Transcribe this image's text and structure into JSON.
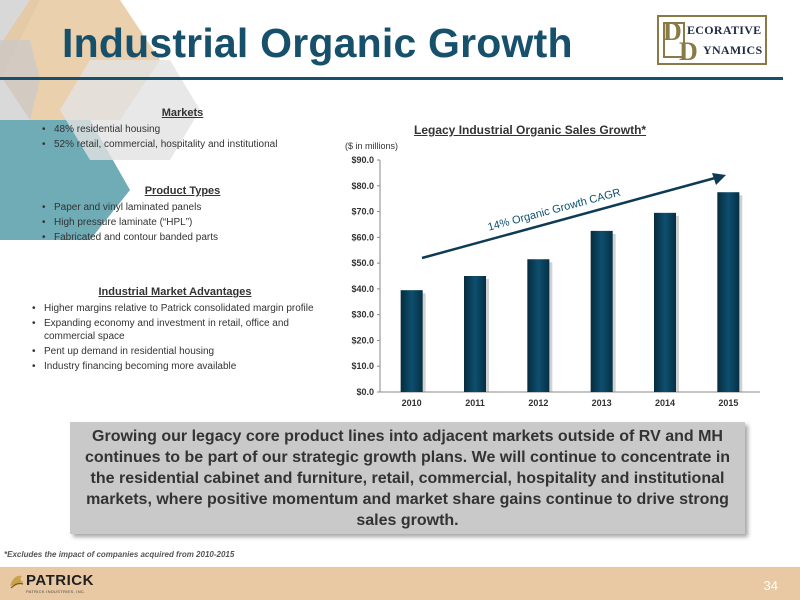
{
  "header": {
    "title": "Industrial Organic Growth",
    "logo": {
      "initial1": "D",
      "initial2": "D",
      "word1": "ECORATIVE",
      "word2": "YNAMICS"
    }
  },
  "left": {
    "markets": {
      "heading": "Markets",
      "items": [
        "48% residential housing",
        "52% retail, commercial, hospitality and institutional"
      ]
    },
    "product_types": {
      "heading": "Product Types",
      "items": [
        "Paper and vinyl laminated panels",
        "High pressure laminate (“HPL”)",
        "Fabricated and contour banded parts"
      ]
    },
    "advantages": {
      "heading": "Industrial Market Advantages",
      "items": [
        "Higher margins relative to Patrick consolidated margin profile",
        "Expanding economy and investment in retail, office and commercial space",
        "Pent up demand in residential housing",
        "Industry financing becoming more available"
      ]
    }
  },
  "chart": {
    "unit_label": "($ in millions)",
    "arrow_label": "14% Organic Growth CAGR"
  },
  "chart_data": {
    "type": "bar",
    "title": "Legacy Industrial Organic Sales Growth*",
    "categories": [
      "2010",
      "2011",
      "2012",
      "2013",
      "2014",
      "2015"
    ],
    "values": [
      39.5,
      45.0,
      51.5,
      62.5,
      69.5,
      77.5
    ],
    "ylim": [
      0,
      90
    ],
    "yticks": [
      "$0.0",
      "$10.0",
      "$20.0",
      "$30.0",
      "$40.0",
      "$50.0",
      "$60.0",
      "$70.0",
      "$80.0",
      "$90.0"
    ],
    "xlabel": "",
    "ylabel": "",
    "grid": false,
    "bar_color": "#0d4f6e"
  },
  "callout": "Growing our legacy core product lines into adjacent markets outside of RV and MH continues to be part of our strategic growth plans. We will continue to concentrate in the residential cabinet and furniture, retail, commercial, hospitality and institutional markets, where positive momentum and market share gains continue to drive strong sales growth.",
  "footnote": "*Excludes the impact of companies acquired from 2010-2015",
  "footer": {
    "company": "PATRICK",
    "tagline": "PATRICK INDUSTRIES, INC.",
    "page": "34"
  }
}
